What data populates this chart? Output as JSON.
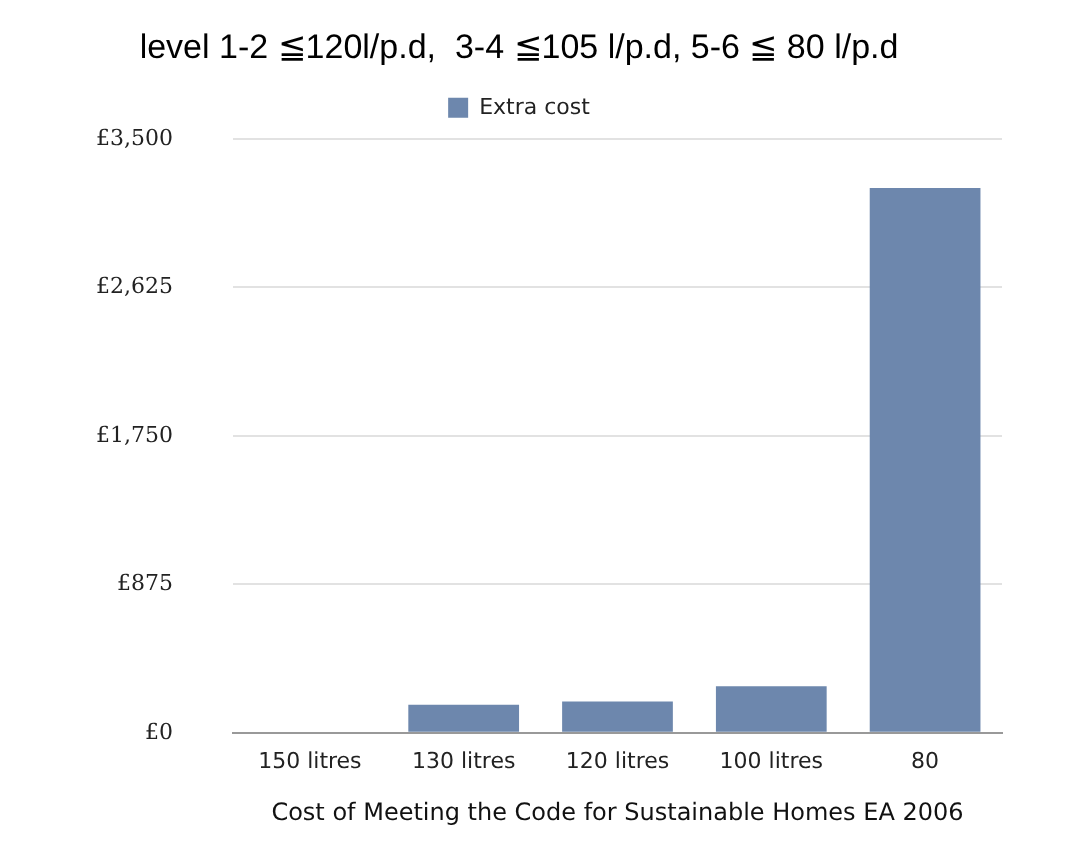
{
  "chart_data": {
    "type": "bar",
    "title": "level 1-2 ≦120l/p.d,  3-4 ≦105 l/p.d, 5-6 ≦ 80 l/p.d",
    "xlabel": "Cost of Meeting the Code for Sustainable Homes EA 2006",
    "categories": [
      "150 litres",
      "130 litres",
      "120 litres",
      "100 litres",
      "80"
    ],
    "series": [
      {
        "name": "Extra cost",
        "color": "#6d87ad",
        "values": [
          0,
          165,
          185,
          275,
          3210
        ]
      }
    ],
    "ylim": [
      0,
      3500
    ],
    "yticks": [
      {
        "value": 0,
        "label": "£0"
      },
      {
        "value": 875,
        "label": "£875"
      },
      {
        "value": 1750,
        "label": "£1,750"
      },
      {
        "value": 2625,
        "label": "£2,625"
      },
      {
        "value": 3500,
        "label": "£3,500"
      }
    ],
    "grid": "y",
    "legend": "top"
  }
}
